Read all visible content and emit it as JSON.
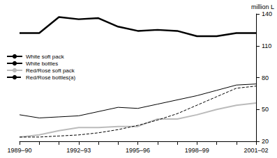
{
  "chart_data": {
    "type": "line",
    "y_label": "million L",
    "categories": [
      "1989–90",
      null,
      null,
      "1992–93",
      null,
      null,
      "1995–96",
      null,
      null,
      "1998–99",
      null,
      null,
      "2001–02"
    ],
    "ylim": [
      20,
      140
    ],
    "yticks": [
      20,
      50,
      80,
      110,
      140
    ],
    "grid": false,
    "legend": "upper left",
    "series": [
      {
        "name": "White soft pack",
        "color": "#000000",
        "line_style": "solid",
        "values": [
          122,
          122,
          137,
          135,
          136,
          128,
          124,
          125,
          124,
          119,
          119,
          122,
          122
        ]
      },
      {
        "name": "White bottles",
        "color": "#000000",
        "line_style": "solid",
        "values": [
          45,
          42,
          43,
          44,
          48,
          52,
          51,
          55,
          59,
          63,
          68,
          73,
          74
        ]
      },
      {
        "name": "Red/Rosé soft pack",
        "color": "#bbbbbb",
        "line_style": "solid",
        "values": [
          24,
          26,
          30,
          33,
          33,
          34,
          34,
          41,
          41,
          45,
          50,
          54,
          56
        ]
      },
      {
        "name": "Red/Rosé bottles(a)",
        "color": "#000000",
        "line_style": "dashed",
        "values": [
          24,
          24,
          25,
          26,
          28,
          31,
          35,
          40,
          46,
          54,
          62,
          70,
          72
        ]
      }
    ]
  }
}
